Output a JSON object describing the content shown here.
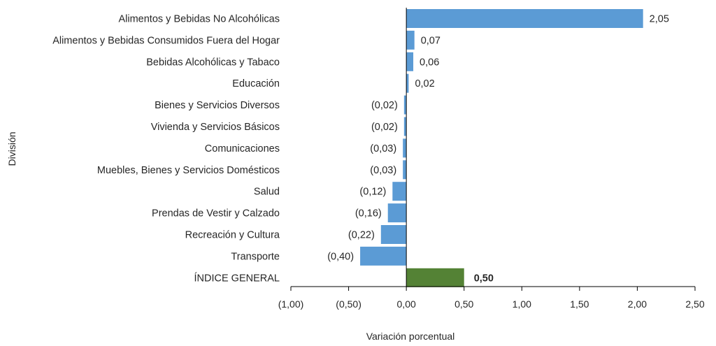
{
  "chart_data": {
    "type": "bar",
    "orientation": "horizontal",
    "categories": [
      "Alimentos y Bebidas No Alcohólicas",
      "Alimentos y Bebidas Consumidos Fuera del Hogar",
      "Bebidas Alcohólicas y Tabaco",
      "Educación",
      "Bienes y Servicios Diversos",
      "Vivienda y Servicios Básicos",
      "Comunicaciones",
      "Muebles, Bienes y Servicios Domésticos",
      "Salud",
      "Prendas de Vestir y Calzado",
      "Recreación y Cultura",
      "Transporte",
      "ÍNDICE GENERAL"
    ],
    "values": [
      2.05,
      0.07,
      0.06,
      0.02,
      -0.02,
      -0.02,
      -0.03,
      -0.03,
      -0.12,
      -0.16,
      -0.22,
      -0.4,
      0.5
    ],
    "value_labels": [
      "2,05",
      "0,07",
      "0,06",
      "0,02",
      "(0,02)",
      "(0,02)",
      "(0,03)",
      "(0,03)",
      "(0,12)",
      "(0,16)",
      "(0,22)",
      "(0,40)",
      "0,50"
    ],
    "highlight_index": 12,
    "xlabel": "Variación porcentual",
    "ylabel": "División",
    "xlim": [
      -1.0,
      2.5
    ],
    "xticks": [
      -1.0,
      -0.5,
      0.0,
      0.5,
      1.0,
      1.5,
      2.0,
      2.5
    ],
    "xtick_labels": [
      "(1,00)",
      "(0,50)",
      "0,00",
      "0,50",
      "1,00",
      "1,50",
      "2,00",
      "2,50"
    ],
    "grid": false,
    "colors": {
      "bar": "#5B9BD5",
      "highlight": "#548235",
      "axis": "#000000",
      "text": "#262626"
    }
  }
}
